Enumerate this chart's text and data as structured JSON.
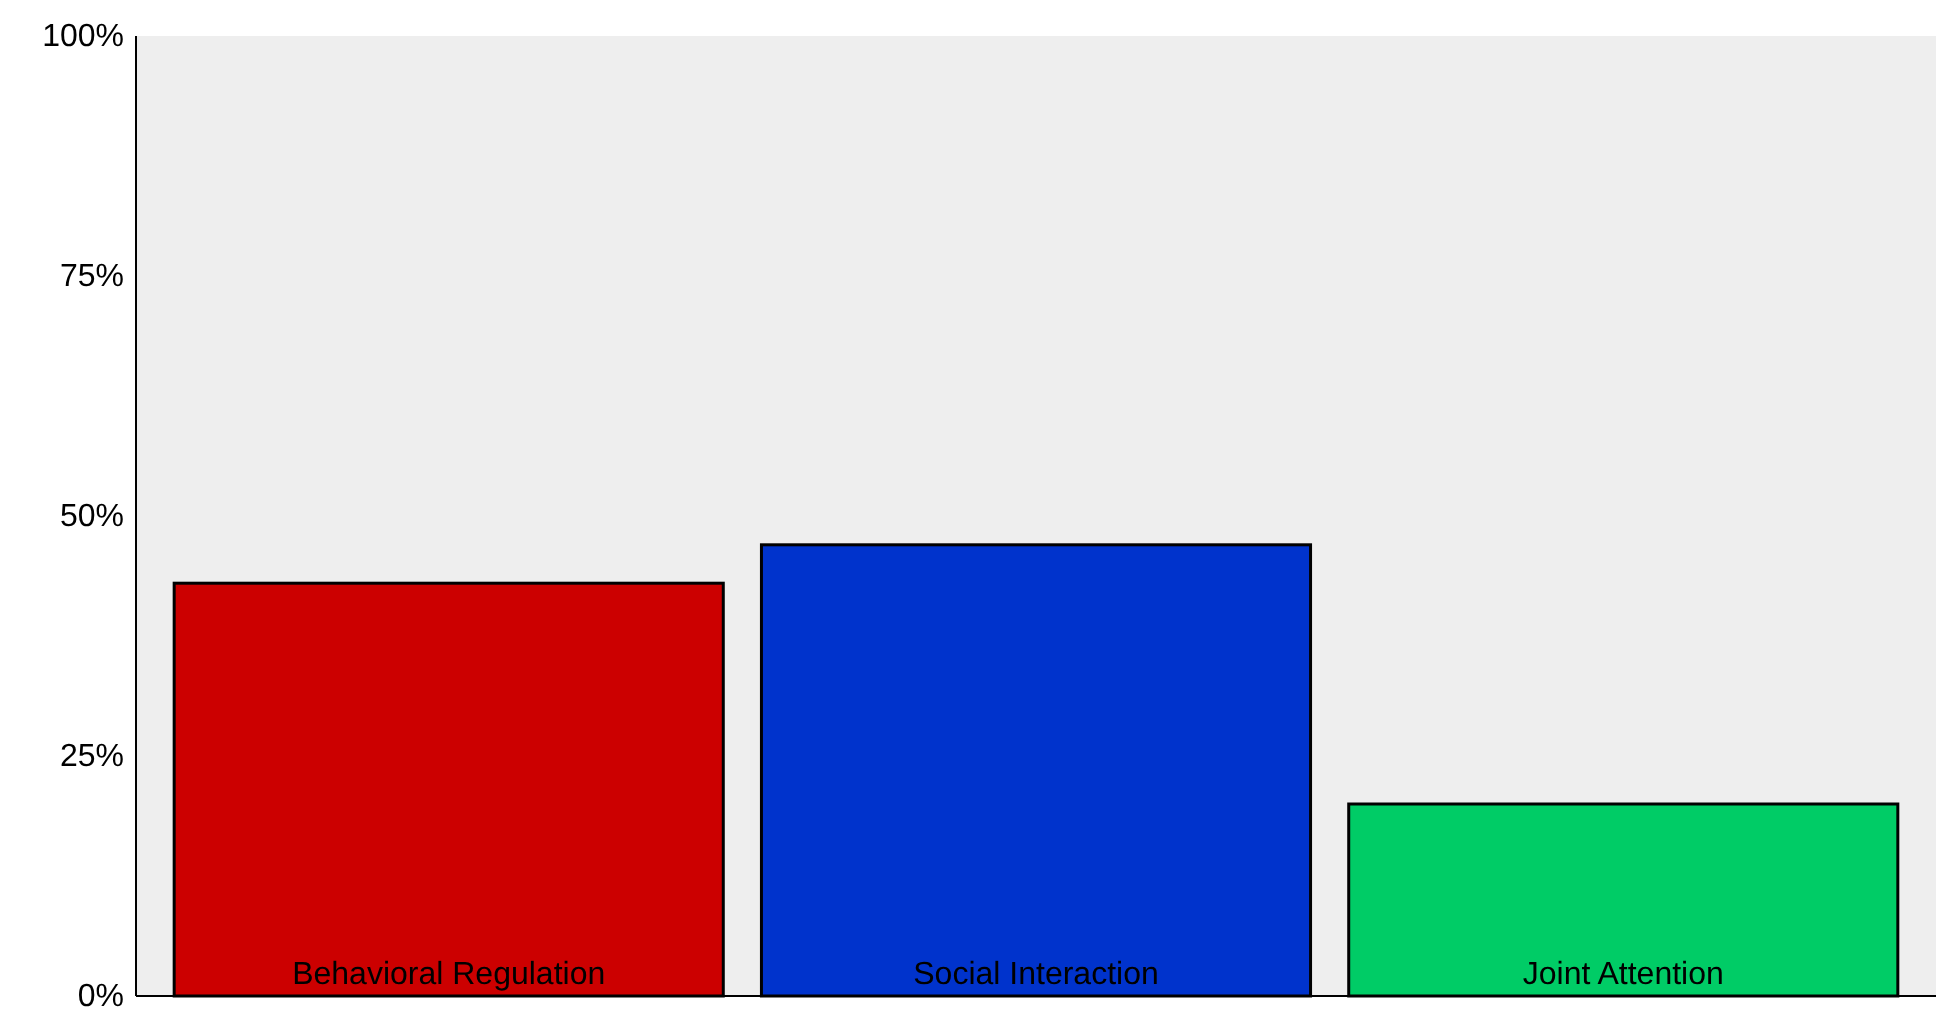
{
  "chart_data": {
    "type": "bar",
    "categories": [
      "Behavioral Regulation",
      "Social Interaction",
      "Joint Attention"
    ],
    "values": [
      43,
      47,
      20
    ],
    "colors": [
      "#cc0000",
      "#0033cc",
      "#00cc66"
    ],
    "ylim": [
      0,
      100
    ],
    "yticks": [
      {
        "value": 0,
        "label": "0%"
      },
      {
        "value": 25,
        "label": "25%"
      },
      {
        "value": 50,
        "label": "50%"
      },
      {
        "value": 75,
        "label": "75%"
      },
      {
        "value": 100,
        "label": "100%"
      }
    ],
    "grid": false
  }
}
